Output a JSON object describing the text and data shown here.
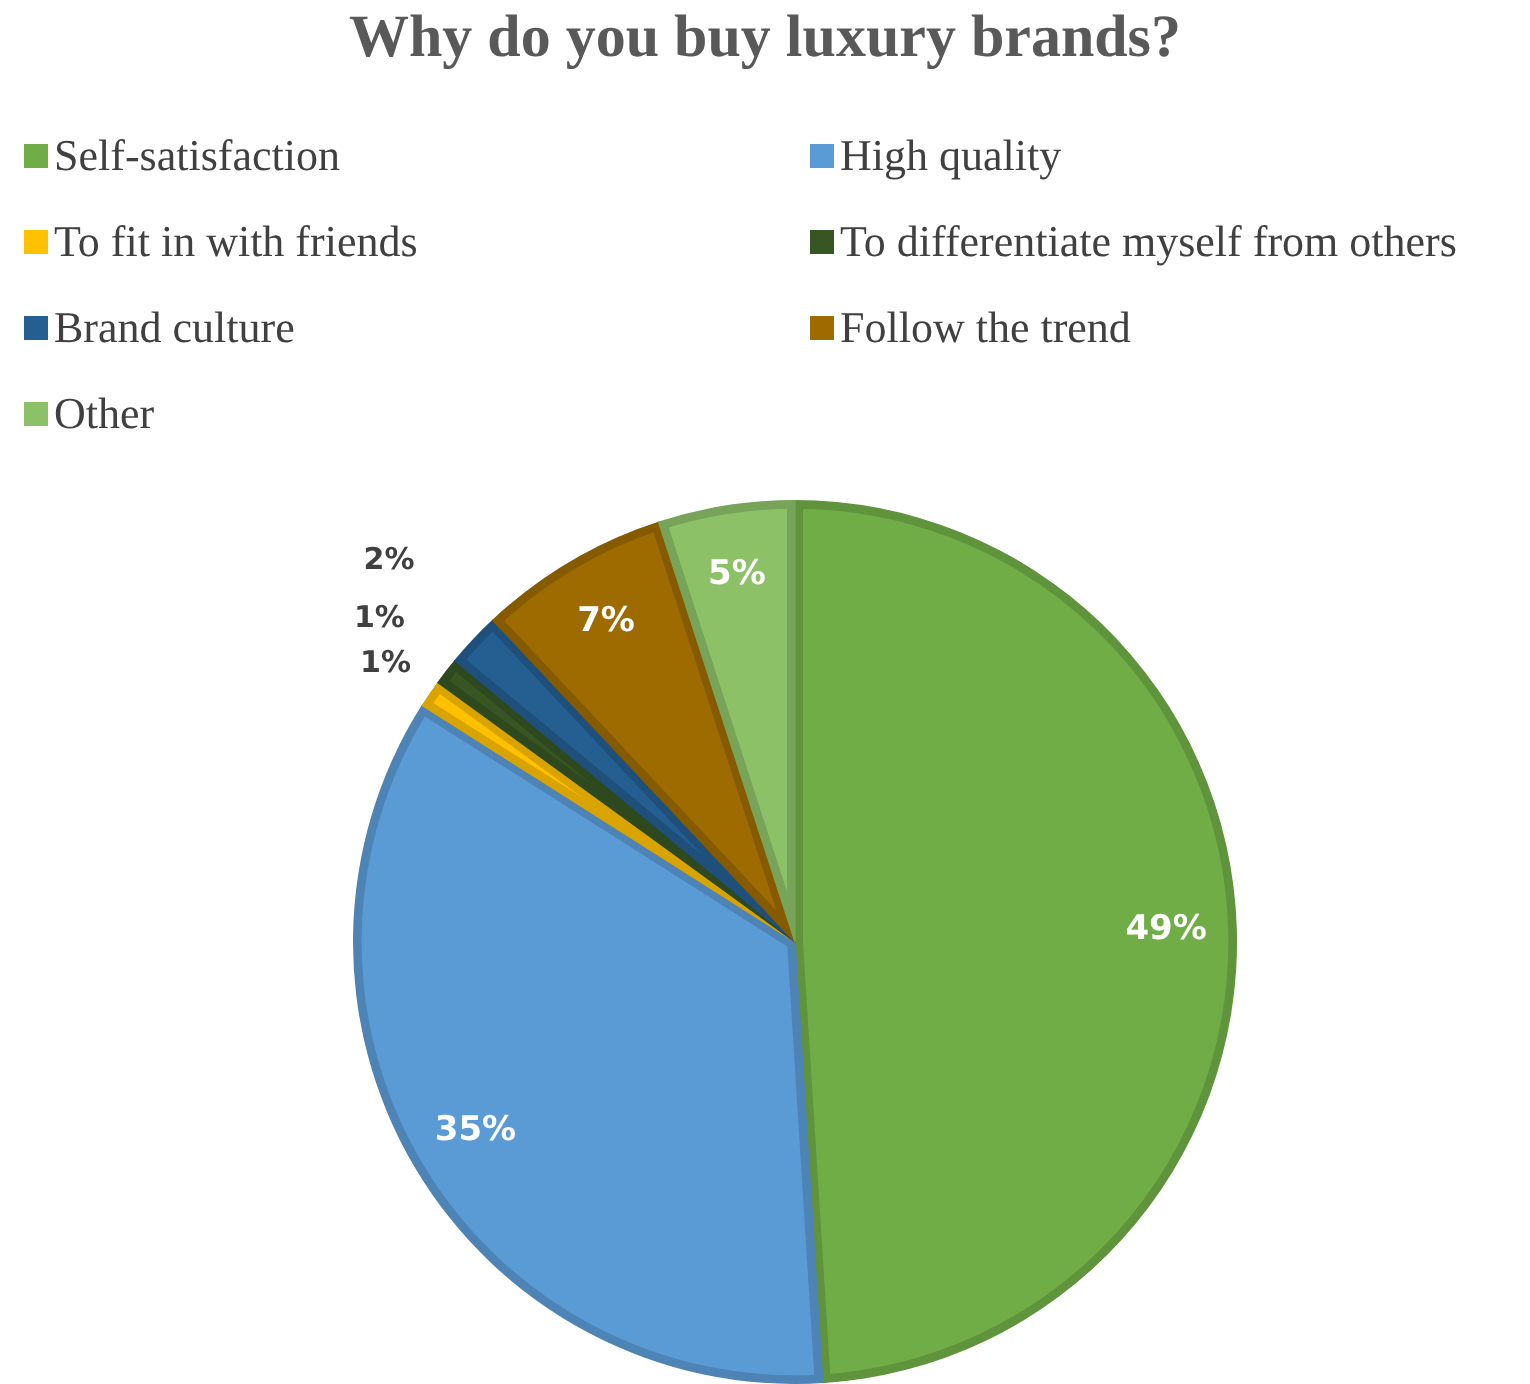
{
  "chart_data": {
    "type": "pie",
    "title": "Why do you buy luxury brands?",
    "categories": [
      "Self-satisfaction",
      "High quality",
      "To fit in with friends",
      "To differentiate myself from others",
      "Brand culture",
      "Follow the trend",
      "Other"
    ],
    "values": [
      49,
      35,
      1,
      1,
      2,
      7,
      5
    ],
    "colors": [
      "#70ad47",
      "#5b9bd5",
      "#ffc000",
      "#375623",
      "#255e91",
      "#9e6b00",
      "#8cc168"
    ],
    "value_labels": [
      "49%",
      "35%",
      "1%",
      "1%",
      "2%",
      "7%",
      "5%"
    ],
    "legend": "top"
  }
}
